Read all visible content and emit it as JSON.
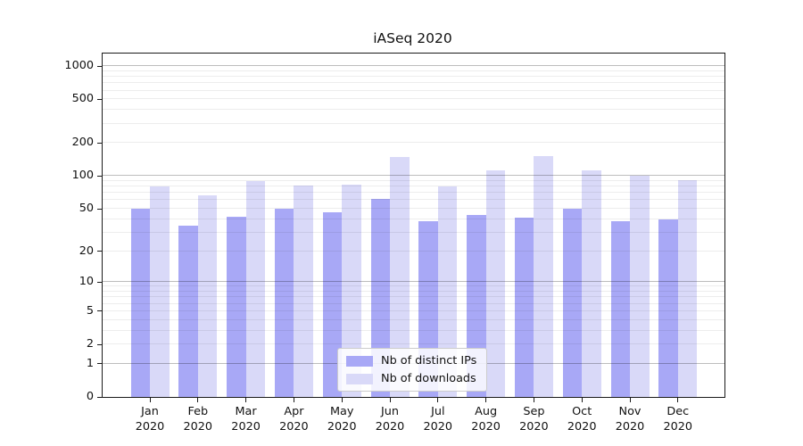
{
  "figure": {
    "title": "iASeq 2020"
  },
  "chart_data": {
    "type": "bar",
    "title": "iASeq 2020",
    "categories": [
      "Jan 2020",
      "Feb 2020",
      "Mar 2020",
      "Apr 2020",
      "May 2020",
      "Jun 2020",
      "Jul 2020",
      "Aug 2020",
      "Sep 2020",
      "Oct 2020",
      "Nov 2020",
      "Dec 2020"
    ],
    "series": [
      {
        "name": "Nb of distinct IPs",
        "color": "#a8a8f6",
        "values": [
          50,
          35,
          42,
          50,
          46,
          62,
          38,
          44,
          41,
          50,
          38,
          40
        ]
      },
      {
        "name": "Nb of downloads",
        "color": "#d9d9f8",
        "values": [
          81,
          66,
          90,
          82,
          84,
          150,
          81,
          112,
          152,
          113,
          100,
          91
        ]
      }
    ],
    "xlabel": "",
    "ylabel": "",
    "y_scale": "log1p",
    "y_ticks": [
      0,
      1,
      2,
      5,
      10,
      20,
      50,
      100,
      200,
      500,
      1000
    ],
    "ylim": [
      0,
      1280
    ],
    "grid": true,
    "grid_on_top": true,
    "legend_position": "lower center inside"
  }
}
